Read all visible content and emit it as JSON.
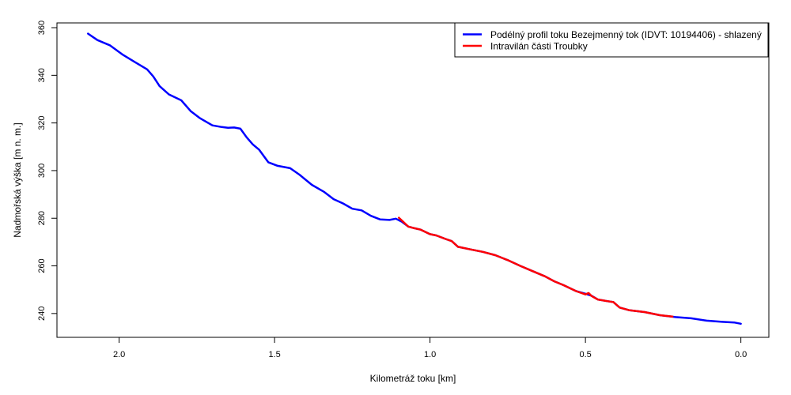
{
  "chart_data": {
    "type": "line",
    "title": "",
    "xlabel": "Kilometráž toku [km]",
    "ylabel": "Nadmořská výška [m n. m.]",
    "xlim": [
      2.2,
      -0.09
    ],
    "ylim": [
      230,
      362
    ],
    "x_reversed": true,
    "x_ticks": [
      2.0,
      1.5,
      1.0,
      0.5,
      0.0
    ],
    "x_tick_labels": [
      "2.0",
      "1.5",
      "1.0",
      "0.5",
      "0.0"
    ],
    "y_ticks": [
      240,
      260,
      280,
      300,
      320,
      340,
      360
    ],
    "y_tick_labels": [
      "240",
      "260",
      "280",
      "300",
      "320",
      "340",
      "360"
    ],
    "grid": false,
    "legend_position": "top-right",
    "series": [
      {
        "name": "Podélný profil toku Bezejmenný tok (IDVT: 10194406) - shlazený",
        "color": "#0000ff",
        "x": [
          2.1,
          2.07,
          2.03,
          1.99,
          1.95,
          1.91,
          1.89,
          1.87,
          1.84,
          1.8,
          1.77,
          1.74,
          1.7,
          1.67,
          1.65,
          1.63,
          1.61,
          1.59,
          1.57,
          1.55,
          1.52,
          1.49,
          1.45,
          1.42,
          1.38,
          1.34,
          1.31,
          1.28,
          1.25,
          1.22,
          1.19,
          1.16,
          1.13,
          1.11,
          1.09,
          1.07,
          1.05,
          1.03,
          1.0,
          0.98,
          0.95,
          0.93,
          0.91,
          0.87,
          0.83,
          0.79,
          0.75,
          0.71,
          0.67,
          0.63,
          0.6,
          0.57,
          0.53,
          0.5,
          0.48,
          0.46,
          0.43,
          0.41,
          0.39,
          0.36,
          0.31,
          0.26,
          0.21,
          0.16,
          0.11,
          0.06,
          0.02,
          0.0
        ],
        "y": [
          357.5,
          354.8,
          352.6,
          348.8,
          345.6,
          342.5,
          339.5,
          335.5,
          332.0,
          329.5,
          325.0,
          322.0,
          319.0,
          318.3,
          318.0,
          318.1,
          317.6,
          314.0,
          311.0,
          308.8,
          303.5,
          302.0,
          301.0,
          298.3,
          294.0,
          291.0,
          288.0,
          286.2,
          284.0,
          283.3,
          281.0,
          279.5,
          279.3,
          279.8,
          278.5,
          276.5,
          275.8,
          275.2,
          273.3,
          272.8,
          271.3,
          270.4,
          268.0,
          266.9,
          265.9,
          264.5,
          262.4,
          260.0,
          257.8,
          255.6,
          253.5,
          251.9,
          249.4,
          248.3,
          247.4,
          245.9,
          245.2,
          244.8,
          242.5,
          241.4,
          240.6,
          239.3,
          238.5,
          238.0,
          237.0,
          236.5,
          236.2,
          235.7
        ]
      },
      {
        "name": "Intravilán části Troubky",
        "color": "#ff0000",
        "x": [
          1.1,
          1.09,
          1.07,
          1.05,
          1.03,
          1.0,
          0.98,
          0.95,
          0.93,
          0.91,
          0.87,
          0.83,
          0.79,
          0.75,
          0.71,
          0.67,
          0.63,
          0.6,
          0.57,
          0.53,
          0.5,
          0.49,
          0.48,
          0.46,
          0.43,
          0.41,
          0.39,
          0.36,
          0.31,
          0.26,
          0.22
        ],
        "y": [
          280.2,
          279.0,
          276.5,
          275.8,
          275.2,
          273.3,
          272.8,
          271.3,
          270.4,
          268.0,
          266.9,
          265.9,
          264.5,
          262.4,
          260.0,
          257.8,
          255.6,
          253.5,
          251.9,
          249.4,
          248.0,
          248.6,
          247.3,
          245.9,
          245.2,
          244.8,
          242.5,
          241.4,
          240.6,
          239.3,
          238.7
        ]
      }
    ]
  }
}
